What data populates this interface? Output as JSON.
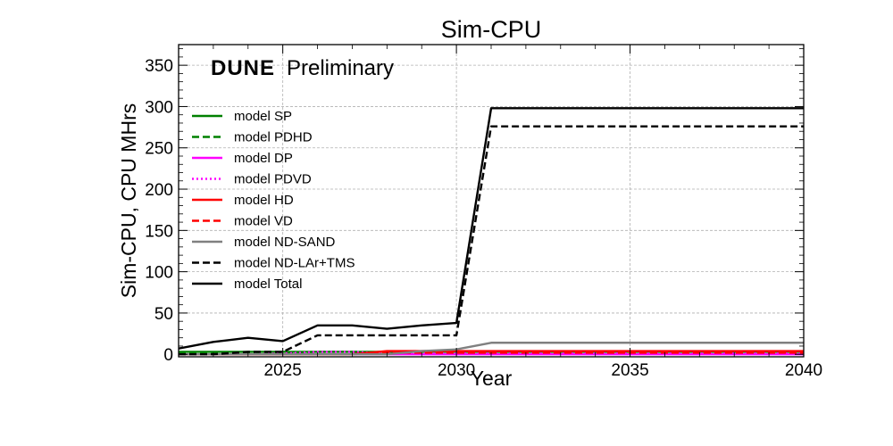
{
  "chart_data": {
    "type": "line",
    "title": "Sim-CPU",
    "xlabel": "Year",
    "ylabel": "Sim-CPU, CPU MHrs",
    "annotation": {
      "bold": "DUNE",
      "rest": "Preliminary"
    },
    "xlim": [
      2022,
      2040
    ],
    "ylim": [
      -3,
      375
    ],
    "xticks": [
      2025,
      2030,
      2035,
      2040
    ],
    "yticks": [
      0,
      50,
      100,
      150,
      200,
      250,
      300,
      350
    ],
    "grid": true,
    "legend_position": "upper-left",
    "x": [
      2022,
      2023,
      2024,
      2025,
      2026,
      2027,
      2028,
      2029,
      2030,
      2031,
      2032,
      2033,
      2034,
      2035,
      2036,
      2037,
      2038,
      2039,
      2040
    ],
    "series": [
      {
        "name": "model SP",
        "color": "#008000",
        "dash": "solid",
        "values": [
          3,
          3,
          3,
          3,
          3,
          3,
          3,
          3,
          3,
          3,
          3,
          3,
          3,
          3,
          3,
          3,
          3,
          3,
          3
        ]
      },
      {
        "name": "model PDHD",
        "color": "#008000",
        "dash": "dashed",
        "values": [
          1,
          1,
          1,
          2,
          3,
          3,
          2,
          2,
          2,
          2,
          2,
          2,
          2,
          2,
          2,
          2,
          2,
          2,
          2
        ]
      },
      {
        "name": "model DP",
        "color": "#ff00ff",
        "dash": "solid",
        "values": [
          0,
          0,
          0,
          0,
          0,
          0,
          0,
          0,
          0,
          0,
          0,
          0,
          0,
          0,
          0,
          0,
          0,
          0,
          0
        ]
      },
      {
        "name": "model PDVD",
        "color": "#ff00ff",
        "dash": "dotted",
        "values": [
          0,
          0,
          0,
          1,
          3,
          3,
          1,
          1,
          1,
          1,
          1,
          1,
          1,
          1,
          1,
          1,
          1,
          1,
          1
        ]
      },
      {
        "name": "model HD",
        "color": "#ff0000",
        "dash": "solid",
        "values": [
          0,
          0,
          0,
          0,
          0,
          0,
          4,
          4,
          4,
          4,
          4,
          4,
          4,
          4,
          4,
          4,
          4,
          4,
          4
        ]
      },
      {
        "name": "model VD",
        "color": "#ff0000",
        "dash": "dashed",
        "values": [
          0,
          0,
          0,
          0,
          0,
          0,
          2,
          2,
          2,
          2,
          2,
          2,
          2,
          2,
          2,
          2,
          2,
          2,
          2
        ]
      },
      {
        "name": "model ND-SAND",
        "color": "#808080",
        "dash": "solid",
        "values": [
          0,
          0,
          0,
          0,
          0,
          0,
          0,
          4,
          6,
          14,
          14,
          14,
          14,
          14,
          14,
          14,
          14,
          14,
          14
        ]
      },
      {
        "name": "model ND-LAr+TMS",
        "color": "#000000",
        "dash": "dashed",
        "values": [
          0,
          0,
          3,
          3,
          23,
          23,
          23,
          23,
          23,
          276,
          276,
          276,
          276,
          276,
          276,
          276,
          276,
          276,
          276
        ]
      },
      {
        "name": "model Total",
        "color": "#000000",
        "dash": "solid",
        "values": [
          7,
          15,
          20,
          16,
          35,
          35,
          31,
          35,
          38,
          298,
          298,
          298,
          298,
          298,
          298,
          298,
          298,
          298,
          298
        ]
      }
    ]
  }
}
